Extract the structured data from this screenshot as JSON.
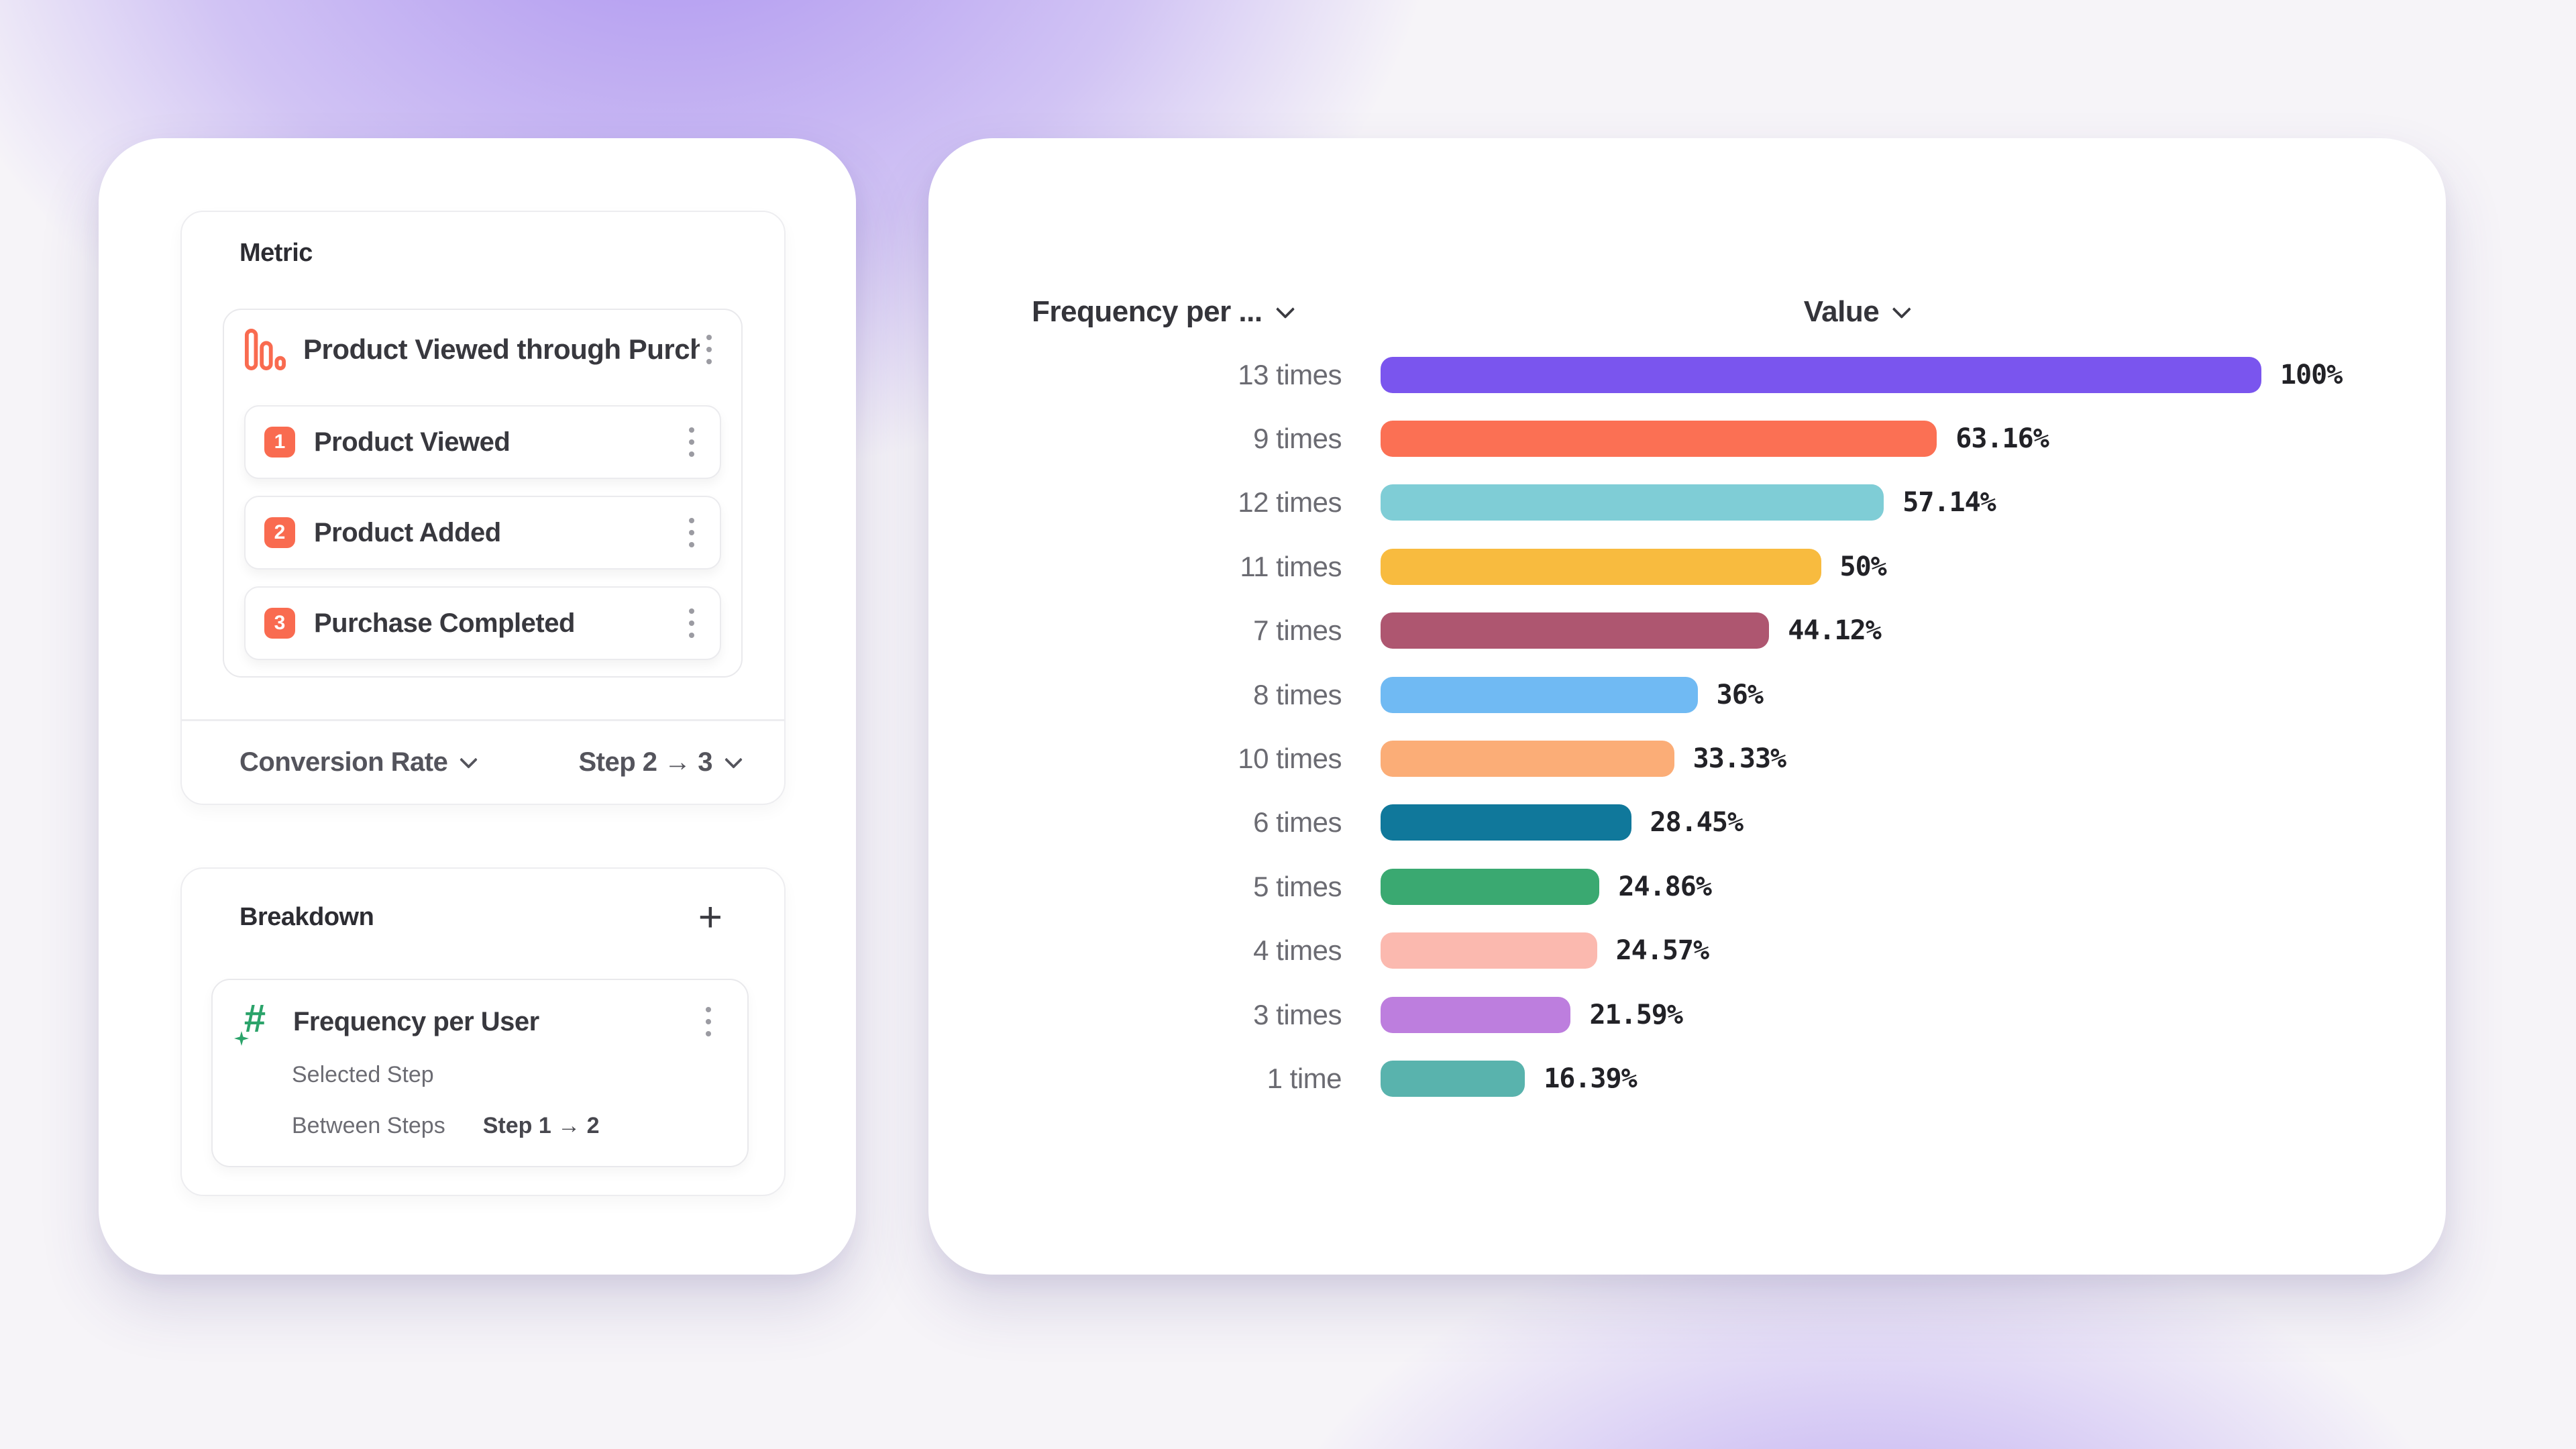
{
  "theme": {
    "background_base": "#F6F4F8",
    "glow_purple": "#7C54EB",
    "card_bg": "#FFFFFF",
    "accent_orange": "#F96B50",
    "accent_green": "#2BA36A",
    "title_color": "#2C2C32",
    "text_primary": "#38383E",
    "text_secondary": "#6B6B72",
    "divider": "#EDEDF0"
  },
  "left_panel": {
    "metric_card": {
      "title": "Metric",
      "funnel": {
        "icon": "funnel-bars-icon",
        "title": "Product Viewed through Purch...",
        "steps": [
          {
            "number": "1",
            "label": "Product Viewed"
          },
          {
            "number": "2",
            "label": "Product Added"
          },
          {
            "number": "3",
            "label": "Purchase Completed"
          }
        ]
      },
      "footer": {
        "measure": "Conversion Rate",
        "step_range": "Step 2 → 3"
      }
    },
    "breakdown_card": {
      "title": "Breakdown",
      "add_button": "+",
      "property": {
        "icon": "numeric-hash-icon",
        "name": "Frequency per User",
        "selected_step_label": "Selected Step",
        "between_steps_label": "Between Steps",
        "between_steps_value": "Step 1 → 2"
      }
    }
  },
  "chart_panel": {
    "columns": {
      "breakdown": "Frequency per ...",
      "value": "Value"
    }
  },
  "chart_data": {
    "type": "bar",
    "orientation": "horizontal",
    "title": "",
    "xlabel": "Value",
    "ylabel": "Frequency per User",
    "xlim": [
      0,
      100
    ],
    "grid": false,
    "legend": false,
    "categories": [
      "13 times",
      "9 times",
      "12 times",
      "11 times",
      "7 times",
      "8 times",
      "10 times",
      "6 times",
      "5 times",
      "4 times",
      "3 times",
      "1 time"
    ],
    "values": [
      100,
      63.16,
      57.14,
      50,
      44.12,
      36,
      33.33,
      28.45,
      24.86,
      24.57,
      21.59,
      16.39
    ],
    "value_labels": [
      "100%",
      "63.16%",
      "57.14%",
      "50%",
      "44.12%",
      "36%",
      "33.33%",
      "28.45%",
      "24.86%",
      "24.57%",
      "21.59%",
      "16.39%"
    ],
    "bar_colors": [
      "#7A55EE",
      "#FB7054",
      "#7FCDD6",
      "#F8BB3F",
      "#AE5670",
      "#70BAF3",
      "#FBAD77",
      "#10789B",
      "#3AA971",
      "#FBB9AF",
      "#BD7EDE",
      "#59B3AD"
    ]
  }
}
